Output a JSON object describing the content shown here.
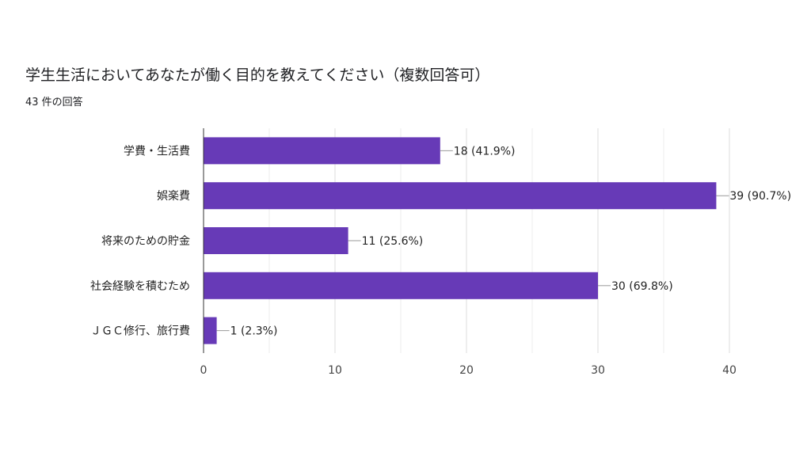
{
  "form": {
    "title": "学生生活においてあなたが働く目的を教えてください（複数回答可）",
    "responses": "43 件の回答"
  },
  "chart_data": {
    "type": "bar",
    "orientation": "horizontal",
    "title": "学生生活においてあなたが働く目的を教えてください（複数回答可）",
    "subtitle": "43 件の回答",
    "categories": [
      "学費・生活費",
      "娯楽費",
      "将来のための貯金",
      "社会経験を積むため",
      "ＪＧＣ修行、旅行費"
    ],
    "values": [
      18,
      39,
      11,
      30,
      1
    ],
    "data_labels": [
      "18 (41.9%)",
      "39 (90.7%)",
      "11 (25.6%)",
      "30 (69.8%)",
      "1 (2.3%)"
    ],
    "xlim": [
      0,
      40
    ],
    "x_ticks": [
      0,
      10,
      20,
      30,
      40
    ],
    "grid": true,
    "legend": "none",
    "bar_color": "#673ab7"
  }
}
